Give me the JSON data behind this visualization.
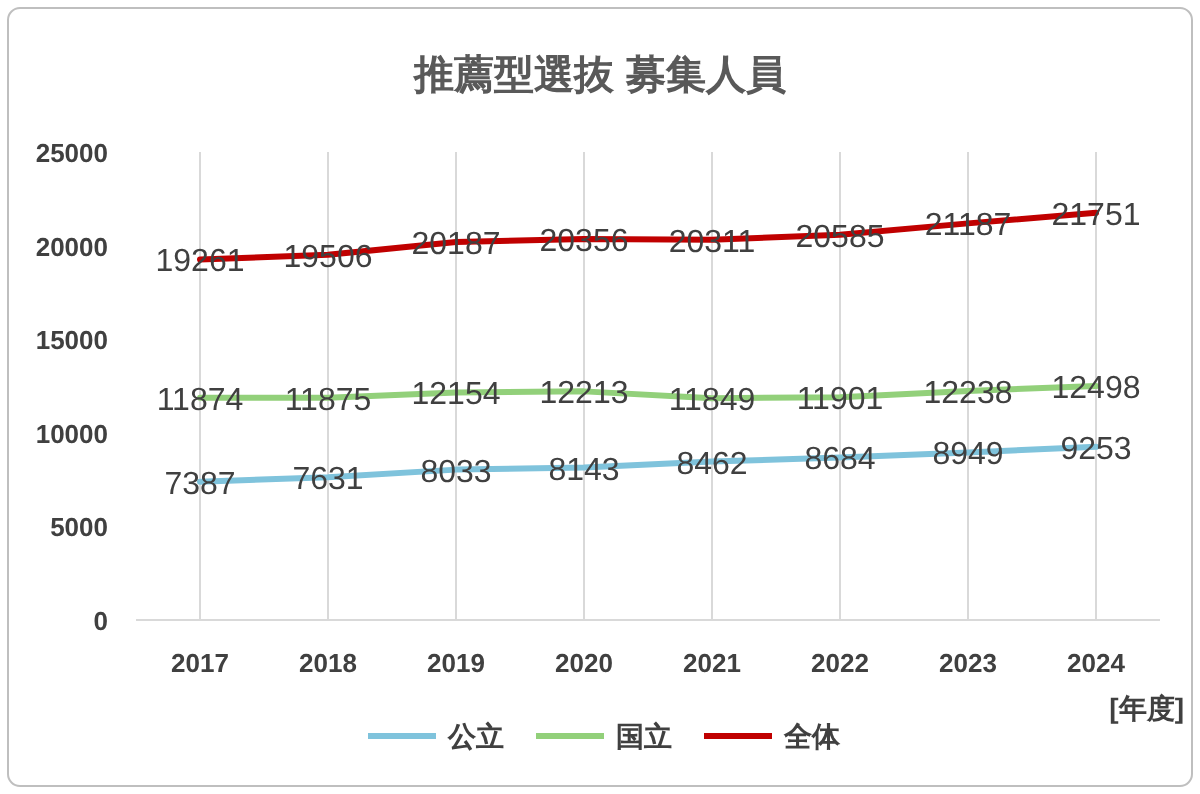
{
  "chart_data": {
    "type": "line",
    "title": "推薦型選抜 募集人員",
    "xlabel": "[年度]",
    "categories": [
      "2017",
      "2018",
      "2019",
      "2020",
      "2021",
      "2022",
      "2023",
      "2024"
    ],
    "series": [
      {
        "name": "公立",
        "color": "#7fc3dc",
        "values": [
          7387,
          7631,
          8033,
          8143,
          8462,
          8684,
          8949,
          9253
        ]
      },
      {
        "name": "国立",
        "color": "#92d07a",
        "values": [
          11874,
          11875,
          12154,
          12213,
          11849,
          11901,
          12238,
          12498
        ]
      },
      {
        "name": "全体",
        "color": "#c00000",
        "values": [
          19261,
          19506,
          20187,
          20356,
          20311,
          20585,
          21187,
          21751
        ]
      }
    ],
    "ylim": [
      0,
      25000
    ],
    "yticks": [
      0,
      5000,
      10000,
      15000,
      20000,
      25000
    ],
    "grid": "x",
    "legend": "bottom",
    "data_labels": true,
    "marker": "none",
    "line_style": "solid"
  }
}
